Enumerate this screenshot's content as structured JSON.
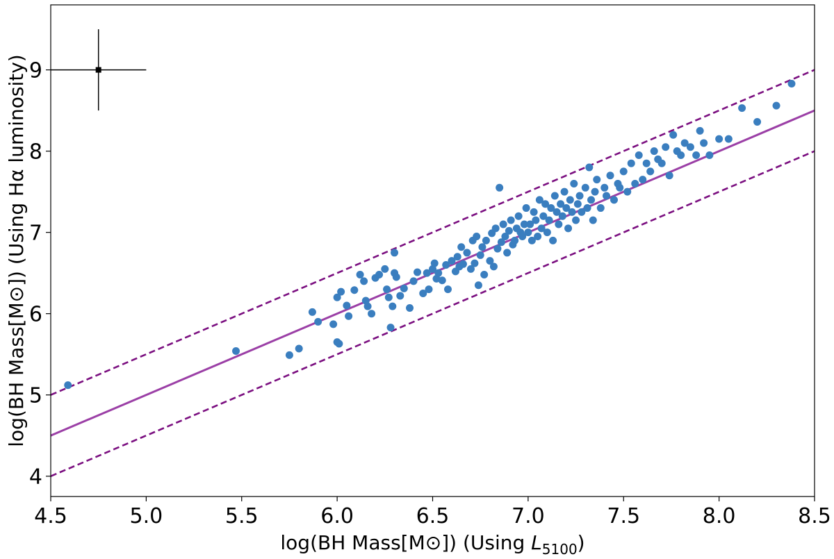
{
  "chart_data": {
    "type": "scatter",
    "title": "",
    "xlabel": "log(BH Mass[M⊙]) (Using L5100)",
    "xlabel_main": "log(BH Mass[M⊙]) (Using ",
    "xlabel_symbol": "L",
    "xlabel_sub": "5100",
    "xlabel_close": ")",
    "ylabel": "log(BH Mass[M⊙]) (Using Hα luminosity)",
    "xlim": [
      4.5,
      8.5
    ],
    "ylim": [
      3.75,
      9.8
    ],
    "xticks": [
      4.5,
      5.0,
      5.5,
      6.0,
      6.5,
      7.0,
      7.5,
      8.0,
      8.5
    ],
    "xtick_labels": [
      "4.5",
      "5.0",
      "5.5",
      "6.0",
      "6.5",
      "7.0",
      "7.5",
      "8.0",
      "8.5"
    ],
    "yticks": [
      4,
      5,
      6,
      7,
      8,
      9
    ],
    "ytick_labels": [
      "4",
      "5",
      "6",
      "7",
      "8",
      "9"
    ],
    "grid": false,
    "colors": {
      "points": "#3a7ebf",
      "fit_line": "#9b3fa6",
      "dashed_lines": "#7b0f80",
      "error_bar": "#000000"
    },
    "fit_line": {
      "slope": 1.0,
      "intercept": 0.0,
      "style": "solid"
    },
    "scatter_lines": [
      {
        "slope": 1.0,
        "intercept": 0.5,
        "style": "dashed"
      },
      {
        "slope": 1.0,
        "intercept": -0.5,
        "style": "dashed"
      }
    ],
    "error_bar": {
      "x": 4.75,
      "y": 9.0,
      "xerr": 0.25,
      "yerr": 0.5
    },
    "series": [
      {
        "points": [
          [
            4.59,
            5.12
          ],
          [
            5.47,
            5.54
          ],
          [
            5.75,
            5.49
          ],
          [
            5.8,
            5.57
          ],
          [
            5.87,
            6.02
          ],
          [
            5.9,
            5.9
          ],
          [
            5.98,
            5.87
          ],
          [
            6.0,
            5.65
          ],
          [
            6.01,
            5.63
          ],
          [
            6.0,
            6.2
          ],
          [
            6.02,
            6.27
          ],
          [
            6.05,
            6.1
          ],
          [
            6.06,
            5.97
          ],
          [
            6.09,
            6.29
          ],
          [
            6.12,
            6.48
          ],
          [
            6.14,
            6.4
          ],
          [
            6.15,
            6.16
          ],
          [
            6.16,
            6.09
          ],
          [
            6.18,
            6.0
          ],
          [
            6.2,
            6.44
          ],
          [
            6.22,
            6.48
          ],
          [
            6.25,
            6.55
          ],
          [
            6.26,
            6.3
          ],
          [
            6.27,
            6.2
          ],
          [
            6.28,
            5.83
          ],
          [
            6.29,
            6.09
          ],
          [
            6.3,
            6.5
          ],
          [
            6.3,
            6.75
          ],
          [
            6.31,
            6.45
          ],
          [
            6.33,
            6.22
          ],
          [
            6.35,
            6.31
          ],
          [
            6.38,
            6.07
          ],
          [
            6.4,
            6.4
          ],
          [
            6.42,
            6.51
          ],
          [
            6.45,
            6.25
          ],
          [
            6.47,
            6.5
          ],
          [
            6.48,
            6.3
          ],
          [
            6.5,
            6.55
          ],
          [
            6.51,
            6.62
          ],
          [
            6.52,
            6.43
          ],
          [
            6.53,
            6.5
          ],
          [
            6.55,
            6.41
          ],
          [
            6.57,
            6.6
          ],
          [
            6.58,
            6.3
          ],
          [
            6.6,
            6.65
          ],
          [
            6.62,
            6.52
          ],
          [
            6.63,
            6.7
          ],
          [
            6.64,
            6.58
          ],
          [
            6.65,
            6.82
          ],
          [
            6.66,
            6.61
          ],
          [
            6.68,
            6.75
          ],
          [
            6.7,
            6.55
          ],
          [
            6.71,
            6.9
          ],
          [
            6.72,
            6.62
          ],
          [
            6.73,
            6.95
          ],
          [
            6.74,
            6.35
          ],
          [
            6.75,
            6.72
          ],
          [
            6.76,
            6.82
          ],
          [
            6.77,
            6.48
          ],
          [
            6.78,
            6.9
          ],
          [
            6.8,
            6.65
          ],
          [
            6.81,
            6.99
          ],
          [
            6.82,
            6.58
          ],
          [
            6.83,
            7.05
          ],
          [
            6.84,
            6.8
          ],
          [
            6.85,
            7.55
          ],
          [
            6.86,
            6.88
          ],
          [
            6.87,
            7.1
          ],
          [
            6.88,
            6.95
          ],
          [
            6.89,
            6.75
          ],
          [
            6.9,
            7.02
          ],
          [
            6.91,
            7.15
          ],
          [
            6.92,
            6.85
          ],
          [
            6.93,
            6.9
          ],
          [
            6.94,
            7.05
          ],
          [
            6.95,
            7.2
          ],
          [
            6.96,
            7.0
          ],
          [
            6.97,
            6.95
          ],
          [
            6.98,
            7.1
          ],
          [
            6.99,
            7.3
          ],
          [
            7.0,
            7.0
          ],
          [
            7.01,
            7.1
          ],
          [
            7.02,
            6.9
          ],
          [
            7.03,
            7.25
          ],
          [
            7.04,
            7.15
          ],
          [
            7.05,
            6.95
          ],
          [
            7.06,
            7.4
          ],
          [
            7.07,
            7.05
          ],
          [
            7.08,
            7.2
          ],
          [
            7.09,
            7.35
          ],
          [
            7.1,
            7.0
          ],
          [
            7.11,
            7.15
          ],
          [
            7.12,
            7.3
          ],
          [
            7.13,
            6.9
          ],
          [
            7.14,
            7.45
          ],
          [
            7.15,
            7.25
          ],
          [
            7.16,
            7.1
          ],
          [
            7.17,
            7.35
          ],
          [
            7.18,
            7.2
          ],
          [
            7.19,
            7.5
          ],
          [
            7.2,
            7.3
          ],
          [
            7.21,
            7.05
          ],
          [
            7.22,
            7.4
          ],
          [
            7.23,
            7.25
          ],
          [
            7.24,
            7.6
          ],
          [
            7.25,
            7.15
          ],
          [
            7.26,
            7.35
          ],
          [
            7.27,
            7.45
          ],
          [
            7.28,
            7.25
          ],
          [
            7.3,
            7.55
          ],
          [
            7.31,
            7.3
          ],
          [
            7.32,
            7.8
          ],
          [
            7.33,
            7.4
          ],
          [
            7.34,
            7.15
          ],
          [
            7.35,
            7.5
          ],
          [
            7.36,
            7.65
          ],
          [
            7.38,
            7.3
          ],
          [
            7.4,
            7.55
          ],
          [
            7.41,
            7.45
          ],
          [
            7.43,
            7.7
          ],
          [
            7.45,
            7.4
          ],
          [
            7.47,
            7.6
          ],
          [
            7.48,
            7.55
          ],
          [
            7.5,
            7.75
          ],
          [
            7.52,
            7.5
          ],
          [
            7.54,
            7.85
          ],
          [
            7.56,
            7.6
          ],
          [
            7.58,
            7.95
          ],
          [
            7.6,
            7.65
          ],
          [
            7.62,
            7.85
          ],
          [
            7.64,
            7.75
          ],
          [
            7.66,
            8.0
          ],
          [
            7.68,
            7.9
          ],
          [
            7.7,
            7.85
          ],
          [
            7.72,
            8.05
          ],
          [
            7.74,
            7.7
          ],
          [
            7.76,
            8.2
          ],
          [
            7.78,
            8.0
          ],
          [
            7.8,
            7.95
          ],
          [
            7.82,
            8.1
          ],
          [
            7.85,
            8.05
          ],
          [
            7.88,
            7.95
          ],
          [
            7.9,
            8.25
          ],
          [
            7.92,
            8.1
          ],
          [
            7.95,
            7.95
          ],
          [
            8.0,
            8.15
          ],
          [
            8.05,
            8.15
          ],
          [
            8.12,
            8.53
          ],
          [
            8.2,
            8.36
          ],
          [
            8.3,
            8.56
          ],
          [
            8.38,
            8.83
          ]
        ]
      }
    ]
  }
}
